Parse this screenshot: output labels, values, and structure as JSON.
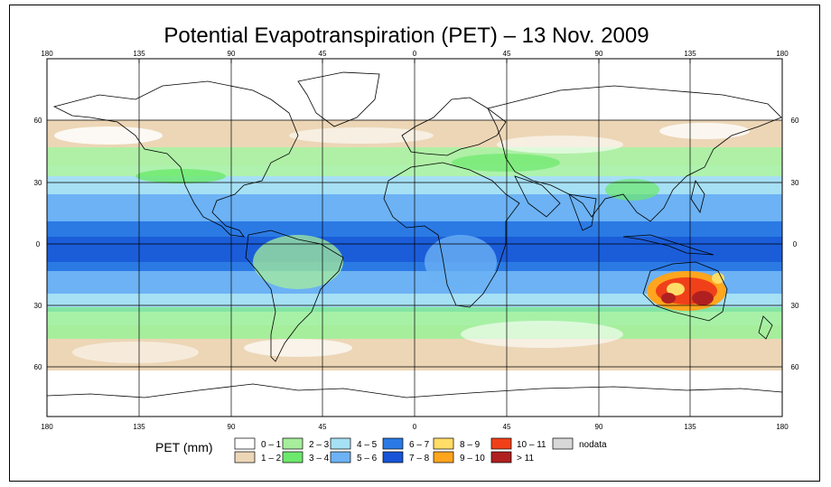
{
  "title": "Potential Evapotranspiration (PET) – 13 Nov. 2009",
  "axes": {
    "top_ticks": [
      "180",
      "135",
      "90",
      "45",
      "0",
      "45",
      "90",
      "135",
      "180"
    ],
    "bottom_ticks": [
      "180",
      "135",
      "90",
      "45",
      "0",
      "45",
      "90",
      "135",
      "180"
    ],
    "left_ticks": [
      "60",
      "30",
      "0",
      "30",
      "60"
    ],
    "right_ticks": [
      "60",
      "30",
      "0",
      "30",
      "60"
    ]
  },
  "legend": {
    "title": "PET (mm)",
    "items": [
      {
        "label": "0 – 1",
        "color": "#ffffff"
      },
      {
        "label": "1 – 2",
        "color": "#ecd6b6"
      },
      {
        "label": "2 – 3",
        "color": "#a6ee9c"
      },
      {
        "label": "3 – 4",
        "color": "#6ce86c"
      },
      {
        "label": "4 – 5",
        "color": "#a6e0f4"
      },
      {
        "label": "5 – 6",
        "color": "#6cb2f4"
      },
      {
        "label": "6 – 7",
        "color": "#2b7ae4"
      },
      {
        "label": "7 – 8",
        "color": "#1754d6"
      },
      {
        "label": "8 – 9",
        "color": "#ffdd66"
      },
      {
        "label": "9 – 10",
        "color": "#ffa51e"
      },
      {
        "label": "10 – 11",
        "color": "#f0401a"
      },
      {
        "label": "> 11",
        "color": "#b02020"
      },
      {
        "label": "nodata",
        "color": "#d8d8d8"
      }
    ]
  }
}
